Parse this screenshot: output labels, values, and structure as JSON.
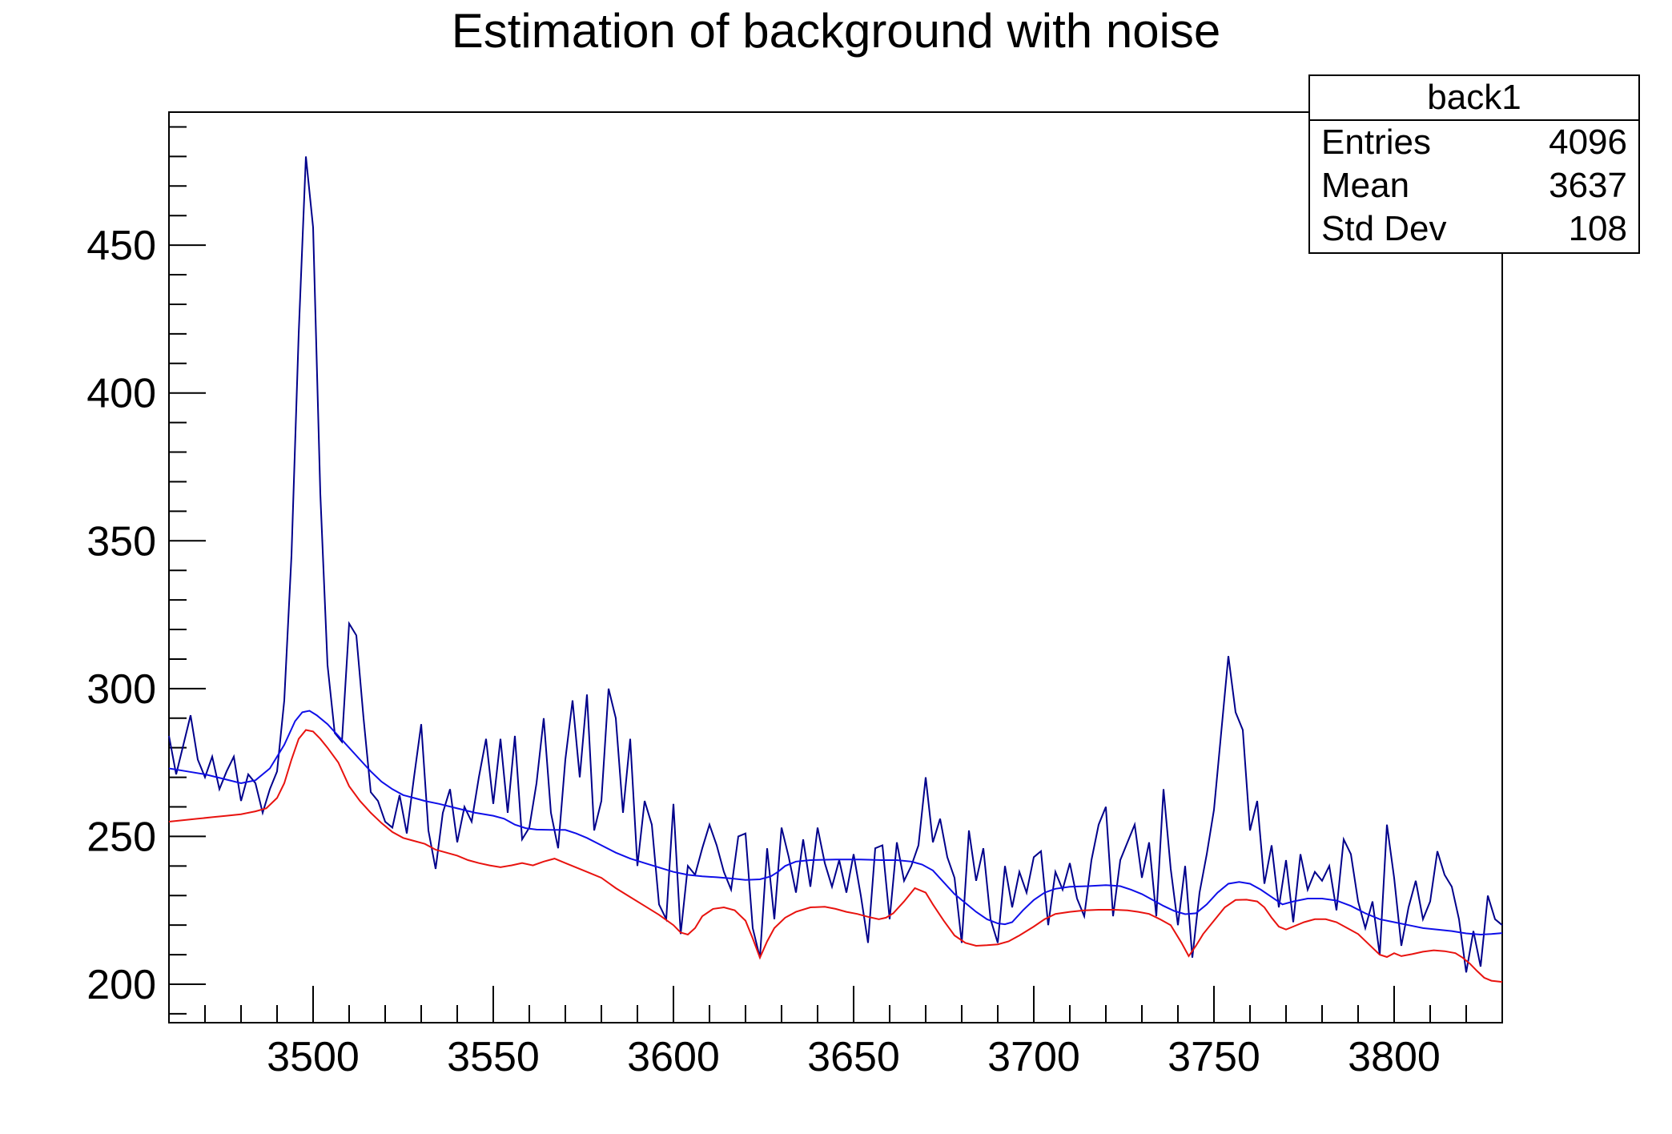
{
  "title": "Estimation of background with noise",
  "stats_box": {
    "title": "back1",
    "rows": [
      {
        "label": "Entries",
        "value": "4096"
      },
      {
        "label": "Mean",
        "value": "3637"
      },
      {
        "label": "Std Dev",
        "value": "108"
      }
    ]
  },
  "colors": {
    "background": "#ffffff",
    "frame": "#000000",
    "text": "#000000",
    "noisy_spectrum": "#00008b",
    "smoothed_spectrum": "#0f0fe8",
    "background_estimate": "#e8130f"
  },
  "chart_data": {
    "type": "line",
    "title": "Estimation of background with noise",
    "xlabel": "",
    "ylabel": "",
    "grid": false,
    "legend_position": "none",
    "xlim": [
      3460,
      3830
    ],
    "ylim": [
      187,
      495
    ],
    "x_major_ticks": [
      3500,
      3550,
      3600,
      3650,
      3700,
      3750,
      3800
    ],
    "x_tick_labels": [
      "3500",
      "3550",
      "3600",
      "3650",
      "3700",
      "3750",
      "3800"
    ],
    "x_minor_step": 10,
    "y_major_ticks": [
      200,
      250,
      300,
      350,
      400,
      450
    ],
    "y_tick_labels": [
      "200",
      "250",
      "300",
      "350",
      "400",
      "450"
    ],
    "y_minor_step": 10,
    "series": [
      {
        "name": "spectrum_with_noise",
        "color": "#00008b",
        "width": 2,
        "x_start": 3460,
        "x_step": 2,
        "values": [
          284,
          271,
          281,
          291,
          276,
          270,
          277,
          266,
          272,
          277,
          262,
          271,
          268,
          258,
          266,
          272,
          296,
          345,
          420,
          480,
          456,
          366,
          308,
          285,
          282,
          322,
          318,
          290,
          265,
          262,
          255,
          253,
          264,
          251,
          270,
          288,
          252,
          239,
          258,
          266,
          248,
          260,
          255,
          270,
          283,
          261,
          283,
          258,
          284,
          249,
          253,
          268,
          290,
          258,
          246,
          276,
          296,
          270,
          298,
          252,
          262,
          300,
          290,
          258,
          283,
          240,
          262,
          254,
          227,
          222,
          261,
          217,
          240,
          237,
          246,
          254,
          247,
          238,
          232,
          250,
          251,
          219,
          209,
          246,
          222,
          253,
          243,
          231,
          249,
          233,
          253,
          241,
          233,
          242,
          231,
          244,
          230,
          214,
          246,
          247,
          222,
          248,
          235,
          240,
          247,
          270,
          248,
          256,
          243,
          236,
          214,
          252,
          235,
          246,
          222,
          214,
          240,
          226,
          238,
          231,
          243,
          245,
          220,
          238,
          232,
          241,
          229,
          223,
          242,
          254,
          260,
          223,
          242,
          248,
          254,
          236,
          248,
          223,
          266,
          239,
          220,
          240,
          209,
          231,
          244,
          259,
          285,
          311,
          292,
          286,
          252,
          262,
          234,
          247,
          226,
          242,
          221,
          244,
          232,
          238,
          235,
          240,
          225,
          249,
          244,
          228,
          219,
          228,
          210,
          254,
          236,
          213,
          226,
          235,
          222,
          228,
          245,
          237,
          233,
          222,
          204,
          218,
          206,
          230,
          222,
          220
        ]
      },
      {
        "name": "smoothed_spectrum",
        "color": "#0f0fe8",
        "width": 2,
        "points": [
          [
            3460,
            273
          ],
          [
            3465,
            272
          ],
          [
            3470,
            271
          ],
          [
            3475,
            269.5
          ],
          [
            3480,
            268
          ],
          [
            3484,
            269
          ],
          [
            3488,
            273
          ],
          [
            3492,
            281
          ],
          [
            3495,
            289
          ],
          [
            3497,
            292
          ],
          [
            3499,
            292.5
          ],
          [
            3501,
            291
          ],
          [
            3504,
            288
          ],
          [
            3507,
            284
          ],
          [
            3510,
            280
          ],
          [
            3513,
            276
          ],
          [
            3516,
            272
          ],
          [
            3519,
            268.5
          ],
          [
            3522,
            266
          ],
          [
            3525,
            264
          ],
          [
            3528,
            263
          ],
          [
            3531,
            262
          ],
          [
            3535,
            261
          ],
          [
            3540,
            259.5
          ],
          [
            3545,
            258
          ],
          [
            3550,
            257
          ],
          [
            3553,
            256
          ],
          [
            3556,
            254
          ],
          [
            3559,
            252.8
          ],
          [
            3562,
            252.3
          ],
          [
            3566,
            252.2
          ],
          [
            3570,
            252.2
          ],
          [
            3573,
            251
          ],
          [
            3576,
            249.5
          ],
          [
            3580,
            247
          ],
          [
            3584,
            244.5
          ],
          [
            3588,
            242.5
          ],
          [
            3592,
            241
          ],
          [
            3596,
            239.5
          ],
          [
            3600,
            238
          ],
          [
            3604,
            237
          ],
          [
            3608,
            236.5
          ],
          [
            3612,
            236.2
          ],
          [
            3616,
            235.8
          ],
          [
            3620,
            235.3
          ],
          [
            3624,
            235.5
          ],
          [
            3627,
            236.5
          ],
          [
            3629,
            238
          ],
          [
            3631,
            240
          ],
          [
            3634,
            241.5
          ],
          [
            3638,
            242
          ],
          [
            3645,
            242.2
          ],
          [
            3652,
            242.2
          ],
          [
            3658,
            242
          ],
          [
            3662,
            242
          ],
          [
            3666,
            241.5
          ],
          [
            3669,
            240.5
          ],
          [
            3672,
            238.5
          ],
          [
            3675,
            234.5
          ],
          [
            3678,
            230.5
          ],
          [
            3681,
            227.5
          ],
          [
            3684,
            224.5
          ],
          [
            3687,
            222
          ],
          [
            3690,
            220.6
          ],
          [
            3692,
            220.3
          ],
          [
            3694,
            221
          ],
          [
            3697,
            225
          ],
          [
            3700,
            228.5
          ],
          [
            3703,
            231
          ],
          [
            3706,
            232.3
          ],
          [
            3710,
            233
          ],
          [
            3715,
            233.2
          ],
          [
            3720,
            233.5
          ],
          [
            3724,
            233.2
          ],
          [
            3727,
            232
          ],
          [
            3730,
            230.5
          ],
          [
            3733,
            228.5
          ],
          [
            3736,
            226.5
          ],
          [
            3739,
            224.8
          ],
          [
            3742,
            223.7
          ],
          [
            3745,
            224
          ],
          [
            3748,
            227
          ],
          [
            3751,
            231
          ],
          [
            3754,
            234
          ],
          [
            3757,
            234.6
          ],
          [
            3760,
            234
          ],
          [
            3763,
            232
          ],
          [
            3766,
            229.5
          ],
          [
            3769,
            227
          ],
          [
            3772,
            228
          ],
          [
            3776,
            229
          ],
          [
            3780,
            229
          ],
          [
            3784,
            228.3
          ],
          [
            3788,
            226.5
          ],
          [
            3792,
            224
          ],
          [
            3796,
            222
          ],
          [
            3800,
            221
          ],
          [
            3804,
            220
          ],
          [
            3808,
            219
          ],
          [
            3812,
            218.5
          ],
          [
            3816,
            218
          ],
          [
            3820,
            217.2
          ],
          [
            3824,
            216.8
          ],
          [
            3827,
            217
          ],
          [
            3830,
            217.3
          ]
        ]
      },
      {
        "name": "background_estimate",
        "color": "#e8130f",
        "width": 2,
        "points": [
          [
            3460,
            255
          ],
          [
            3464,
            255.5
          ],
          [
            3468,
            256
          ],
          [
            3472,
            256.5
          ],
          [
            3476,
            257
          ],
          [
            3480,
            257.5
          ],
          [
            3484,
            258.5
          ],
          [
            3487,
            259.5
          ],
          [
            3490,
            263
          ],
          [
            3492,
            268
          ],
          [
            3494,
            276
          ],
          [
            3496,
            283
          ],
          [
            3498,
            286
          ],
          [
            3500,
            285.5
          ],
          [
            3502,
            283
          ],
          [
            3504,
            280
          ],
          [
            3507,
            275
          ],
          [
            3510,
            267
          ],
          [
            3513,
            262
          ],
          [
            3516,
            258
          ],
          [
            3519,
            254.5
          ],
          [
            3522,
            251.5
          ],
          [
            3525,
            249.5
          ],
          [
            3528,
            248.5
          ],
          [
            3531,
            247.5
          ],
          [
            3534,
            245.5
          ],
          [
            3537,
            244.5
          ],
          [
            3540,
            243.5
          ],
          [
            3543,
            242
          ],
          [
            3546,
            241
          ],
          [
            3549,
            240.2
          ],
          [
            3552,
            239.6
          ],
          [
            3555,
            240.2
          ],
          [
            3558,
            241
          ],
          [
            3561,
            240.2
          ],
          [
            3564,
            241.5
          ],
          [
            3567,
            242.5
          ],
          [
            3570,
            241
          ],
          [
            3573,
            239.5
          ],
          [
            3576,
            238
          ],
          [
            3580,
            236
          ],
          [
            3584,
            232.5
          ],
          [
            3588,
            229.5
          ],
          [
            3592,
            226.5
          ],
          [
            3596,
            223.5
          ],
          [
            3600,
            220
          ],
          [
            3602,
            217.5
          ],
          [
            3604,
            216.8
          ],
          [
            3606,
            219
          ],
          [
            3608,
            223
          ],
          [
            3611,
            225.5
          ],
          [
            3614,
            226
          ],
          [
            3617,
            225
          ],
          [
            3620,
            221.5
          ],
          [
            3622,
            215.5
          ],
          [
            3624,
            209
          ],
          [
            3626,
            214.5
          ],
          [
            3628,
            219
          ],
          [
            3631,
            222.5
          ],
          [
            3634,
            224.5
          ],
          [
            3638,
            226
          ],
          [
            3642,
            226.2
          ],
          [
            3645,
            225.5
          ],
          [
            3648,
            224.5
          ],
          [
            3651,
            223.8
          ],
          [
            3654,
            222.8
          ],
          [
            3657,
            222
          ],
          [
            3659,
            222.5
          ],
          [
            3661,
            224
          ],
          [
            3664,
            228
          ],
          [
            3667,
            232.5
          ],
          [
            3670,
            231
          ],
          [
            3672,
            227
          ],
          [
            3675,
            221.5
          ],
          [
            3678,
            216.5
          ],
          [
            3681,
            214
          ],
          [
            3684,
            213
          ],
          [
            3687,
            213.2
          ],
          [
            3690,
            213.5
          ],
          [
            3693,
            214.5
          ],
          [
            3696,
            216.5
          ],
          [
            3700,
            219.5
          ],
          [
            3703,
            222
          ],
          [
            3706,
            223.8
          ],
          [
            3710,
            224.5
          ],
          [
            3714,
            225
          ],
          [
            3718,
            225.2
          ],
          [
            3722,
            225.2
          ],
          [
            3726,
            225
          ],
          [
            3729,
            224.5
          ],
          [
            3732,
            223.8
          ],
          [
            3735,
            222
          ],
          [
            3738,
            220
          ],
          [
            3741,
            214
          ],
          [
            3743,
            209.5
          ],
          [
            3745,
            213
          ],
          [
            3747,
            217
          ],
          [
            3750,
            221.5
          ],
          [
            3753,
            226
          ],
          [
            3756,
            228.5
          ],
          [
            3759,
            228.6
          ],
          [
            3762,
            228
          ],
          [
            3764,
            226
          ],
          [
            3766,
            222.5
          ],
          [
            3768,
            219.5
          ],
          [
            3770,
            218.5
          ],
          [
            3772,
            219.5
          ],
          [
            3775,
            221
          ],
          [
            3778,
            222
          ],
          [
            3781,
            222
          ],
          [
            3784,
            221
          ],
          [
            3787,
            219
          ],
          [
            3790,
            217
          ],
          [
            3793,
            213.5
          ],
          [
            3796,
            210
          ],
          [
            3798,
            209.2
          ],
          [
            3800,
            210.5
          ],
          [
            3802,
            209.5
          ],
          [
            3805,
            210.2
          ],
          [
            3808,
            211
          ],
          [
            3811,
            211.5
          ],
          [
            3814,
            211.2
          ],
          [
            3817,
            210.5
          ],
          [
            3819,
            209
          ],
          [
            3821,
            207
          ],
          [
            3823,
            204.5
          ],
          [
            3825,
            202.2
          ],
          [
            3827,
            201.2
          ],
          [
            3830,
            200.8
          ]
        ]
      }
    ]
  }
}
